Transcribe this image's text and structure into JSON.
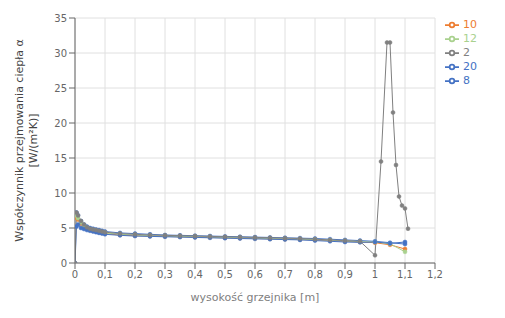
{
  "chart_data": {
    "type": "line",
    "xlabel": "wysokość grzejnika [m]",
    "ylabel": "Współczynnik przejmowania ciepła α\n[W/(m²K)]",
    "xlim": [
      0,
      1.2
    ],
    "ylim": [
      0,
      35
    ],
    "xticks": [
      0,
      {
        "value": 0.1,
        "label": "0,1"
      },
      {
        "value": 0.2,
        "label": "0,2"
      },
      {
        "value": 0.3,
        "label": "0,3"
      },
      {
        "value": 0.4,
        "label": "0,4"
      },
      {
        "value": 0.5,
        "label": "0,5"
      },
      {
        "value": 0.6,
        "label": "0,6"
      },
      {
        "value": 0.7,
        "label": "0,7"
      },
      {
        "value": 0.8,
        "label": "0,8"
      },
      {
        "value": 0.9,
        "label": "0,9"
      },
      1,
      {
        "value": 1.1,
        "label": "1,1"
      },
      {
        "value": 1.2,
        "label": "1,2"
      }
    ],
    "yticks": [
      0,
      5,
      10,
      15,
      20,
      25,
      30,
      35
    ],
    "grid": true,
    "legend": "upper right",
    "marker": "circle",
    "series": [
      {
        "name": "8",
        "color": "#4472C4",
        "x": [
          0.005,
          0.01,
          0.02,
          0.03,
          0.04,
          0.05,
          0.06,
          0.07,
          0.08,
          0.09,
          0.1,
          0.15,
          0.2,
          0.25,
          0.3,
          0.35,
          0.4,
          0.45,
          0.5,
          0.55,
          0.6,
          0.65,
          0.7,
          0.75,
          0.8,
          0.85,
          0.9,
          0.95,
          1.0,
          1.05,
          1.1
        ],
        "values": [
          7.2,
          6.8,
          6.0,
          5.5,
          5.2,
          5.0,
          4.9,
          4.8,
          4.7,
          4.6,
          4.5,
          4.3,
          4.2,
          4.1,
          4.0,
          3.95,
          3.9,
          3.85,
          3.8,
          3.75,
          3.7,
          3.65,
          3.6,
          3.55,
          3.5,
          3.4,
          3.3,
          3.2,
          3.1,
          2.9,
          2.7
        ]
      },
      {
        "name": "10",
        "color": "#ED7D31",
        "x": [
          0.005,
          0.01,
          0.02,
          0.03,
          0.04,
          0.05,
          0.06,
          0.07,
          0.08,
          0.09,
          0.1,
          0.15,
          0.2,
          0.25,
          0.3,
          0.35,
          0.4,
          0.45,
          0.5,
          0.55,
          0.6,
          0.65,
          0.7,
          0.75,
          0.8,
          0.85,
          0.9,
          0.95,
          1.0,
          1.05,
          1.1
        ],
        "values": [
          6.5,
          6.2,
          5.6,
          5.1,
          4.9,
          4.7,
          4.6,
          4.5,
          4.4,
          4.3,
          4.2,
          4.0,
          3.9,
          3.85,
          3.8,
          3.75,
          3.7,
          3.65,
          3.6,
          3.55,
          3.5,
          3.45,
          3.4,
          3.35,
          3.3,
          3.2,
          3.1,
          3.0,
          2.9,
          2.6,
          2.0
        ]
      },
      {
        "name": "12",
        "color": "#A9D18E",
        "x": [
          0.005,
          0.01,
          0.02,
          0.03,
          0.04,
          0.05,
          0.06,
          0.07,
          0.08,
          0.09,
          0.1,
          0.15,
          0.2,
          0.25,
          0.3,
          0.35,
          0.4,
          0.45,
          0.5,
          0.55,
          0.6,
          0.65,
          0.7,
          0.75,
          0.8,
          0.85,
          0.9,
          0.95,
          1.0,
          1.05,
          1.1
        ],
        "values": [
          6.8,
          6.4,
          5.8,
          5.3,
          5.0,
          4.8,
          4.7,
          4.6,
          4.5,
          4.4,
          4.3,
          4.1,
          4.0,
          3.9,
          3.85,
          3.8,
          3.75,
          3.7,
          3.65,
          3.6,
          3.55,
          3.5,
          3.45,
          3.4,
          3.35,
          3.25,
          3.15,
          3.05,
          3.0,
          2.75,
          1.6
        ]
      },
      {
        "name": "20",
        "color": "#4472C4",
        "x": [
          0.0,
          0.005,
          0.01,
          0.02,
          0.03,
          0.04,
          0.05,
          0.06,
          0.07,
          0.08,
          0.09,
          0.1,
          0.15,
          0.2,
          0.25,
          0.3,
          0.35,
          0.4,
          0.45,
          0.5,
          0.55,
          0.6,
          0.65,
          0.7,
          0.75,
          0.8,
          0.85,
          0.9,
          0.95,
          1.0,
          1.05,
          1.1
        ],
        "values": [
          0.0,
          5.2,
          5.5,
          5.0,
          4.85,
          4.7,
          4.6,
          4.5,
          4.4,
          4.3,
          4.2,
          4.1,
          3.95,
          3.85,
          3.8,
          3.75,
          3.7,
          3.65,
          3.6,
          3.55,
          3.5,
          3.45,
          3.4,
          3.35,
          3.3,
          3.2,
          3.1,
          3.0,
          2.95,
          3.0,
          2.8,
          3.0
        ]
      },
      {
        "name": "2",
        "color": "#808080",
        "x": [
          0.0,
          0.005,
          0.01,
          0.02,
          0.03,
          0.04,
          0.05,
          0.06,
          0.07,
          0.08,
          0.09,
          0.1,
          0.15,
          0.2,
          0.25,
          0.3,
          0.35,
          0.4,
          0.45,
          0.5,
          0.55,
          0.6,
          0.65,
          0.7,
          0.75,
          0.8,
          0.85,
          0.9,
          0.95,
          1.0,
          1.02,
          1.04,
          1.05,
          1.06,
          1.07,
          1.08,
          1.09,
          1.1,
          1.11
        ],
        "values": [
          0.0,
          7.2,
          6.8,
          6.0,
          5.5,
          5.1,
          4.9,
          4.8,
          4.7,
          4.6,
          4.5,
          4.4,
          4.2,
          4.1,
          4.0,
          3.95,
          3.9,
          3.85,
          3.8,
          3.75,
          3.7,
          3.65,
          3.6,
          3.55,
          3.5,
          3.4,
          3.3,
          3.2,
          3.1,
          1.1,
          14.5,
          31.5,
          31.5,
          21.5,
          14.0,
          9.5,
          8.2,
          7.8,
          4.9
        ]
      }
    ]
  }
}
